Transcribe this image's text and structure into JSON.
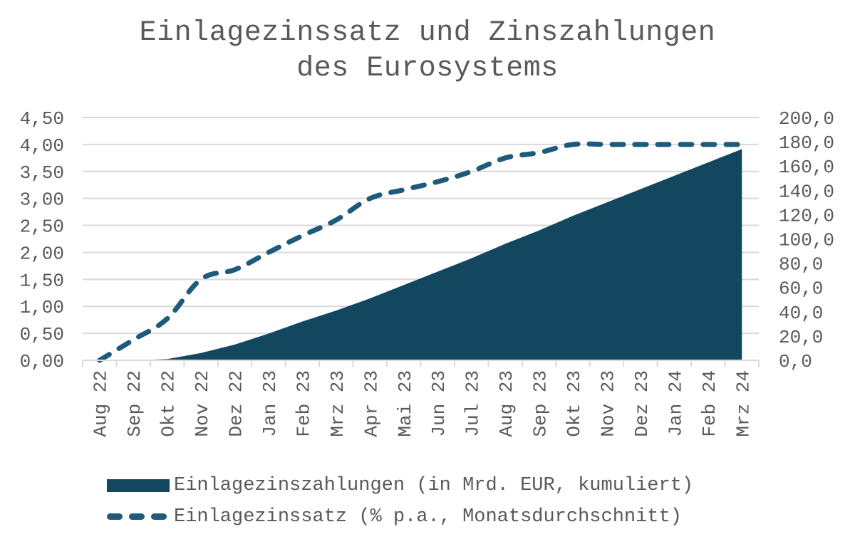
{
  "title": {
    "line1": "Einlagezinssatz und Zinszahlungen",
    "line2": "des Eurosystems"
  },
  "legend": {
    "area_label": "Einlagezinszahlungen (in Mrd. EUR, kumuliert)",
    "line_label": "Einlagezinssatz (% p.a., Monatsdurchschnitt)"
  },
  "colors": {
    "area": "#12475f",
    "line": "#1d5a7c",
    "grid": "#d9d9d9",
    "text": "#595959"
  },
  "chart_data": {
    "type": "area+line",
    "title": "Einlagezinssatz und Zinszahlungen des Eurosystems",
    "categories": [
      "Aug 22",
      "Sep 22",
      "Okt 22",
      "Nov 22",
      "Dez 22",
      "Jan 23",
      "Feb 23",
      "Mrz 23",
      "Apr 23",
      "Mai 23",
      "Jun 23",
      "Jul 23",
      "Aug 23",
      "Sep 23",
      "Okt 23",
      "Nov 23",
      "Dez 23",
      "Jan 24",
      "Feb 24",
      "Mrz 24"
    ],
    "series": [
      {
        "name": "Einlagezinszahlungen (in Mrd. EUR, kumuliert)",
        "type": "area",
        "axis": "right",
        "values": [
          0,
          0,
          1,
          6,
          13,
          22,
          32,
          41,
          51,
          62,
          73,
          84,
          96,
          107,
          119,
          130,
          141,
          152,
          163,
          174
        ]
      },
      {
        "name": "Einlagezinssatz (% p.a., Monatsdurchschnitt)",
        "type": "line",
        "style": "dashed",
        "axis": "left",
        "values": [
          0.0,
          0.38,
          0.77,
          1.5,
          1.68,
          2.0,
          2.31,
          2.6,
          3.0,
          3.16,
          3.31,
          3.5,
          3.75,
          3.85,
          4.0,
          4.0,
          4.0,
          4.0,
          4.0,
          4.0
        ]
      }
    ],
    "y_left": {
      "ticks": [
        "0,00",
        "0,50",
        "1,00",
        "1,50",
        "2,00",
        "2,50",
        "3,00",
        "3,50",
        "4,00",
        "4,50"
      ],
      "ylim": [
        0,
        4.5
      ]
    },
    "y_right": {
      "ticks": [
        "0,0",
        "20,0",
        "40,0",
        "60,0",
        "80,0",
        "100,0",
        "120,0",
        "140,0",
        "160,0",
        "180,0",
        "200,0"
      ],
      "ylim": [
        0,
        200
      ]
    },
    "xlabel": "",
    "grid": true,
    "legend_position": "bottom"
  }
}
